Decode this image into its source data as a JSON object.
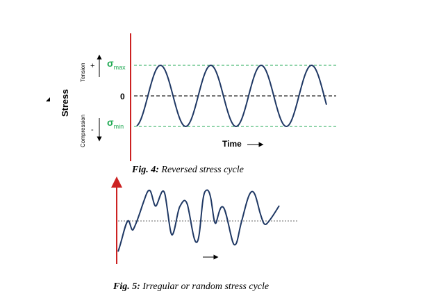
{
  "fig4": {
    "caption_label": "Fig. 4:",
    "caption_text": " Reversed stress cycle",
    "y_axis_label": "Stress",
    "tension_label": "Tension",
    "compression_label": "Compression",
    "plus_sign": "+",
    "minus_sign": "-",
    "sigma_max_symbol": "σ",
    "sigma_max_sub": "max",
    "sigma_min_symbol": "σ",
    "sigma_min_sub": "min",
    "zero_label": "0",
    "x_axis_label": "Time",
    "colors": {
      "axis": "#cc2222",
      "wave": "#1f3864",
      "limit": "#22aa55",
      "mean": "#222222",
      "sigma": "#22aa55"
    }
  },
  "fig5": {
    "caption_label": "Fig. 5:",
    "caption_text": " Irregular or random stress cycle",
    "colors": {
      "axis": "#cc2222",
      "wave": "#1f3864",
      "mean": "#666666"
    }
  }
}
